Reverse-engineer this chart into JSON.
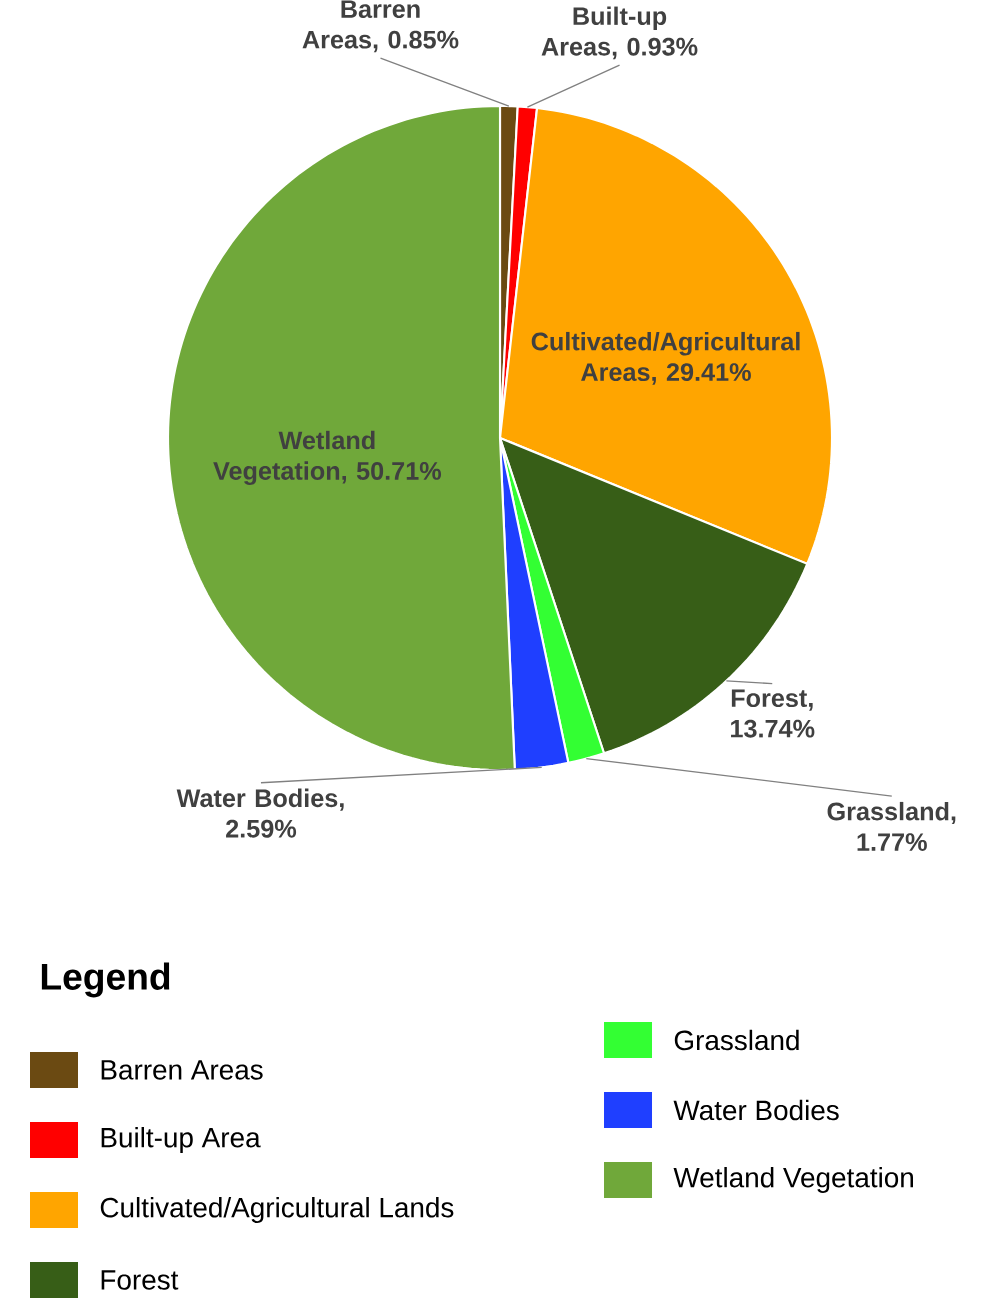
{
  "chart_data": {
    "type": "pie",
    "categories": [
      "Barren Areas",
      "Built-up Area",
      "Cultivated/Agricultural Lands",
      "Forest",
      "Grassland",
      "Water Bodies",
      "Wetland Vegetation"
    ],
    "values": [
      0.85,
      0.93,
      29.41,
      13.74,
      1.77,
      2.59,
      50.71
    ],
    "colors": [
      "#6b4a12",
      "#ff0000",
      "#ffa500",
      "#375e17",
      "#33ff33",
      "#1f3fff",
      "#70a83a"
    ],
    "value_labels": [
      "Barren Areas, 0.85%",
      "Built-up Areas, 0.93%",
      "Cultivated/Agricultural Areas, 29.41%",
      "Forest, 13.74%",
      "Grassland, 1.77%",
      "Water Bodies, 2.59%",
      "Wetland Vegetation, 50.71%"
    ],
    "legend_title": "Legend",
    "legend": "bottom"
  }
}
